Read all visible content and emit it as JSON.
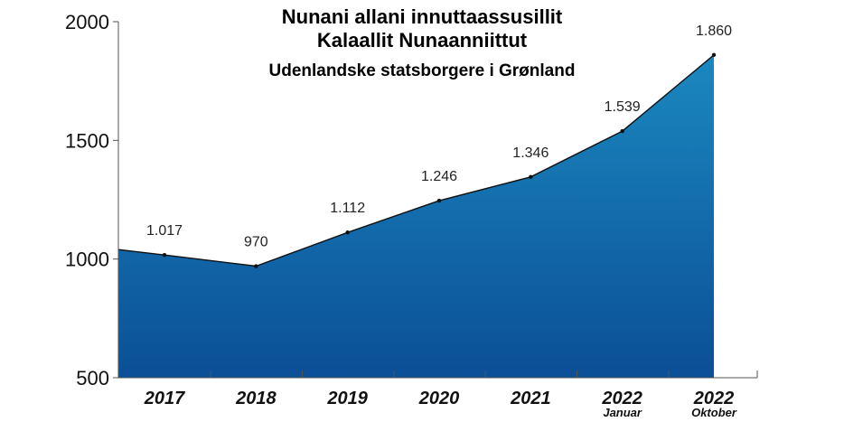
{
  "chart_data": {
    "type": "area",
    "title": "Nunani allani innuttaassusillit",
    "subtitle": "Kalaallit Nunaanniittut",
    "subtitle2": "Udenlandske statsborgere i Grønland",
    "categories": [
      {
        "label": "2017",
        "sub": ""
      },
      {
        "label": "2018",
        "sub": ""
      },
      {
        "label": "2019",
        "sub": ""
      },
      {
        "label": "2020",
        "sub": ""
      },
      {
        "label": "2021",
        "sub": ""
      },
      {
        "label": "2022",
        "sub": "Januar"
      },
      {
        "label": "2022",
        "sub": "Oktober"
      }
    ],
    "series": [
      {
        "values": [
          1017,
          970,
          1112,
          1246,
          1346,
          1539,
          1860
        ],
        "value_labels": [
          "1.017",
          "970",
          "1.112",
          "1.246",
          "1.346",
          "1.539",
          "1.860"
        ]
      }
    ],
    "start_value": 1040,
    "yticks": [
      500,
      1000,
      1500,
      2000
    ],
    "ylim": [
      500,
      2000
    ],
    "grid": false,
    "colors": {
      "area_top": "#1b88bf",
      "area_bottom": "#0b4f97",
      "line": "#111111",
      "axis": "#555555"
    }
  }
}
